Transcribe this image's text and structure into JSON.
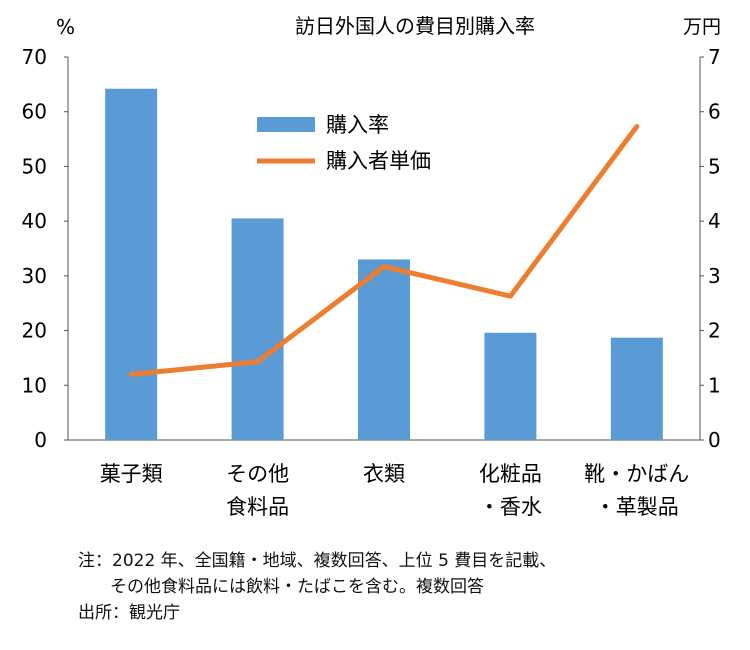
{
  "chart_data": {
    "type": "bar+line",
    "title": "訪日外国人の費目別購入率",
    "left_axis_unit": "%",
    "right_axis_unit": "万円",
    "left_ylim": [
      0,
      70
    ],
    "right_ylim": [
      0,
      7
    ],
    "left_ticks": [
      "0",
      "10",
      "20",
      "30",
      "40",
      "50",
      "60",
      "70"
    ],
    "right_ticks": [
      "0",
      "1",
      "2",
      "3",
      "4",
      "5",
      "6",
      "7"
    ],
    "categories": [
      [
        "菓子類"
      ],
      [
        "その他",
        "食料品"
      ],
      [
        "衣類"
      ],
      [
        "化粧品",
        "・香水"
      ],
      [
        "靴・かばん",
        "・革製品"
      ]
    ],
    "series": [
      {
        "name": "購入率",
        "type": "bar",
        "axis": "left",
        "color": "#5b9bd5",
        "values": [
          64.2,
          40.5,
          33.0,
          19.6,
          18.7
        ]
      },
      {
        "name": "購入者単価",
        "type": "line",
        "axis": "right",
        "color": "#ed7d31",
        "values": [
          1.2,
          1.43,
          3.17,
          2.63,
          5.73
        ]
      }
    ],
    "legend_position": "top-center"
  },
  "notes": {
    "line1": "注：2022 年、全国籍・地域、複数回答、上位 5 費目を記載、",
    "line2": "その他食料品には飲料・たばこを含む。複数回答",
    "line3": "出所：観光庁"
  }
}
